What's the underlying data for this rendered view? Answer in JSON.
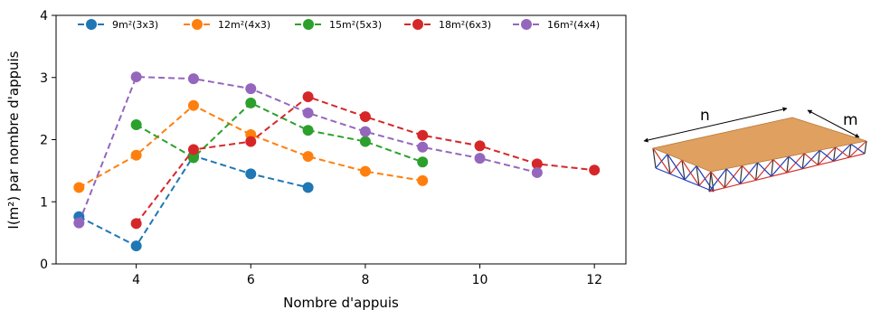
{
  "chart_data": {
    "type": "line",
    "title": "",
    "xlabel": "Nombre d'appuis",
    "ylabel": "I(m²) par nombre d'appuis",
    "xlim": [
      2.6,
      12.55
    ],
    "ylim": [
      0,
      4
    ],
    "xticks": [
      4,
      6,
      8,
      10,
      12
    ],
    "yticks": [
      0,
      1,
      2,
      3,
      4
    ],
    "grid": false,
    "legend": "top, horizontal",
    "series": [
      {
        "name": "9m²(3x3)",
        "color": "#1f77b4",
        "x": [
          3,
          4,
          5,
          6,
          7
        ],
        "y": [
          0.76,
          0.29,
          1.74,
          1.45,
          1.23
        ]
      },
      {
        "name": "12m²(4x3)",
        "color": "#ff7f0e",
        "x": [
          3,
          4,
          5,
          6,
          7,
          8,
          9
        ],
        "y": [
          1.23,
          1.75,
          2.55,
          2.08,
          1.73,
          1.49,
          1.34
        ]
      },
      {
        "name": "15m²(5x3)",
        "color": "#2ca02c",
        "x": [
          4,
          5,
          6,
          7,
          8,
          9
        ],
        "y": [
          2.24,
          1.71,
          2.59,
          2.15,
          1.97,
          1.64
        ]
      },
      {
        "name": "18m²(6x3)",
        "color": "#d62728",
        "x": [
          4,
          5,
          6,
          7,
          8,
          9,
          10,
          11,
          12
        ],
        "y": [
          0.65,
          1.84,
          1.97,
          2.69,
          2.37,
          2.07,
          1.9,
          1.61,
          1.51
        ]
      },
      {
        "name": "16m²(4x4)",
        "color": "#9467bd",
        "x": [
          3,
          4,
          5,
          6,
          7,
          8,
          9,
          10,
          11
        ],
        "y": [
          0.66,
          3.01,
          2.98,
          2.82,
          2.43,
          2.13,
          1.88,
          1.7,
          1.47
        ]
      }
    ]
  },
  "illustration": {
    "label_n": "n",
    "label_m": "m",
    "plate_color": "#e0a060",
    "frame_colors": [
      "#1f3fbf",
      "#d4332b",
      "#333333"
    ]
  }
}
